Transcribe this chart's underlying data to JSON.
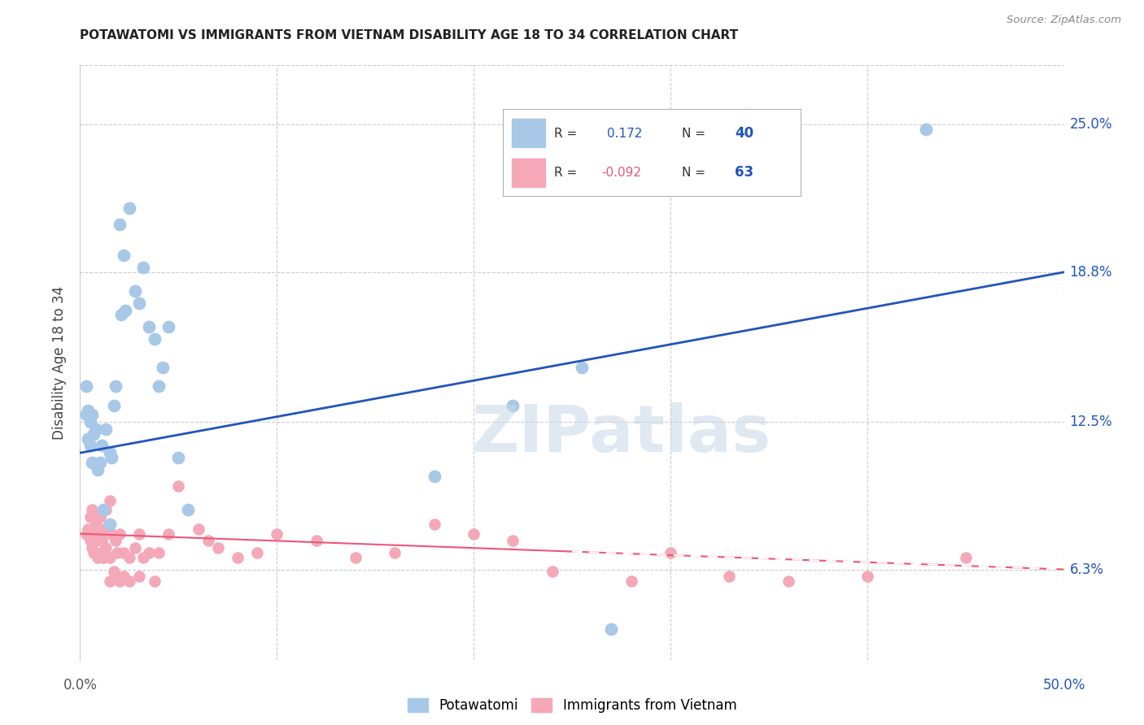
{
  "title": "POTAWATOMI VS IMMIGRANTS FROM VIETNAM DISABILITY AGE 18 TO 34 CORRELATION CHART",
  "source": "Source: ZipAtlas.com",
  "ylabel": "Disability Age 18 to 34",
  "ytick_values": [
    6.3,
    12.5,
    18.8,
    25.0
  ],
  "xlim": [
    0.0,
    50.0
  ],
  "ylim": [
    2.5,
    27.5
  ],
  "legend1_R": "0.172",
  "legend1_N": "40",
  "legend2_R": "-0.092",
  "legend2_N": "63",
  "blue_color": "#a8c8e8",
  "pink_color": "#f4a8b8",
  "blue_line_color": "#2255bb",
  "pink_line_color": "#ee5577",
  "grid_color": "#cccccc",
  "watermark": "ZIPatlas",
  "blue_line_x": [
    0,
    50
  ],
  "blue_line_y": [
    11.2,
    18.8
  ],
  "pink_line_x": [
    0,
    50
  ],
  "pink_line_y": [
    7.8,
    6.3
  ],
  "blue_scatter": [
    [
      0.5,
      12.5
    ],
    [
      0.8,
      12.2
    ],
    [
      1.0,
      10.8
    ],
    [
      1.2,
      8.8
    ],
    [
      1.5,
      8.2
    ],
    [
      1.5,
      11.2
    ],
    [
      1.8,
      14.0
    ],
    [
      2.0,
      20.8
    ],
    [
      2.2,
      19.5
    ],
    [
      2.5,
      21.5
    ],
    [
      2.8,
      18.0
    ],
    [
      3.0,
      17.5
    ],
    [
      3.2,
      19.0
    ],
    [
      3.5,
      16.5
    ],
    [
      3.8,
      16.0
    ],
    [
      4.0,
      14.0
    ],
    [
      4.2,
      14.8
    ],
    [
      4.5,
      16.5
    ],
    [
      0.3,
      14.0
    ],
    [
      0.4,
      11.8
    ],
    [
      0.6,
      10.8
    ],
    [
      0.7,
      12.0
    ],
    [
      0.9,
      10.5
    ],
    [
      1.1,
      11.5
    ],
    [
      1.3,
      12.2
    ],
    [
      1.6,
      11.0
    ],
    [
      1.7,
      13.2
    ],
    [
      2.1,
      17.0
    ],
    [
      2.3,
      17.2
    ],
    [
      0.3,
      12.8
    ],
    [
      0.4,
      13.0
    ],
    [
      0.5,
      11.5
    ],
    [
      0.6,
      12.8
    ],
    [
      5.0,
      11.0
    ],
    [
      5.5,
      8.8
    ],
    [
      18.0,
      10.2
    ],
    [
      22.0,
      13.2
    ],
    [
      25.5,
      14.8
    ],
    [
      43.0,
      24.8
    ],
    [
      27.0,
      3.8
    ]
  ],
  "pink_scatter": [
    [
      0.3,
      7.8
    ],
    [
      0.4,
      8.0
    ],
    [
      0.5,
      8.5
    ],
    [
      0.5,
      7.5
    ],
    [
      0.6,
      8.8
    ],
    [
      0.6,
      7.2
    ],
    [
      0.7,
      7.8
    ],
    [
      0.7,
      7.0
    ],
    [
      0.8,
      8.2
    ],
    [
      0.8,
      7.5
    ],
    [
      0.9,
      6.8
    ],
    [
      0.9,
      8.0
    ],
    [
      1.0,
      8.5
    ],
    [
      1.0,
      7.8
    ],
    [
      1.1,
      7.0
    ],
    [
      1.1,
      7.5
    ],
    [
      1.2,
      8.0
    ],
    [
      1.2,
      6.8
    ],
    [
      1.3,
      8.8
    ],
    [
      1.3,
      7.2
    ],
    [
      1.5,
      9.2
    ],
    [
      1.5,
      6.8
    ],
    [
      1.5,
      5.8
    ],
    [
      1.6,
      7.8
    ],
    [
      1.7,
      6.2
    ],
    [
      1.8,
      7.5
    ],
    [
      1.8,
      6.0
    ],
    [
      1.9,
      7.0
    ],
    [
      2.0,
      7.8
    ],
    [
      2.0,
      5.8
    ],
    [
      2.2,
      7.0
    ],
    [
      2.2,
      6.0
    ],
    [
      2.5,
      6.8
    ],
    [
      2.5,
      5.8
    ],
    [
      2.8,
      7.2
    ],
    [
      3.0,
      7.8
    ],
    [
      3.0,
      6.0
    ],
    [
      3.2,
      6.8
    ],
    [
      3.5,
      7.0
    ],
    [
      3.8,
      5.8
    ],
    [
      4.0,
      7.0
    ],
    [
      4.5,
      7.8
    ],
    [
      5.0,
      9.8
    ],
    [
      5.5,
      8.8
    ],
    [
      6.0,
      8.0
    ],
    [
      6.5,
      7.5
    ],
    [
      7.0,
      7.2
    ],
    [
      8.0,
      6.8
    ],
    [
      9.0,
      7.0
    ],
    [
      10.0,
      7.8
    ],
    [
      12.0,
      7.5
    ],
    [
      14.0,
      6.8
    ],
    [
      16.0,
      7.0
    ],
    [
      18.0,
      8.2
    ],
    [
      20.0,
      7.8
    ],
    [
      22.0,
      7.5
    ],
    [
      24.0,
      6.2
    ],
    [
      28.0,
      5.8
    ],
    [
      30.0,
      7.0
    ],
    [
      33.0,
      6.0
    ],
    [
      36.0,
      5.8
    ],
    [
      40.0,
      6.0
    ],
    [
      45.0,
      6.8
    ]
  ]
}
